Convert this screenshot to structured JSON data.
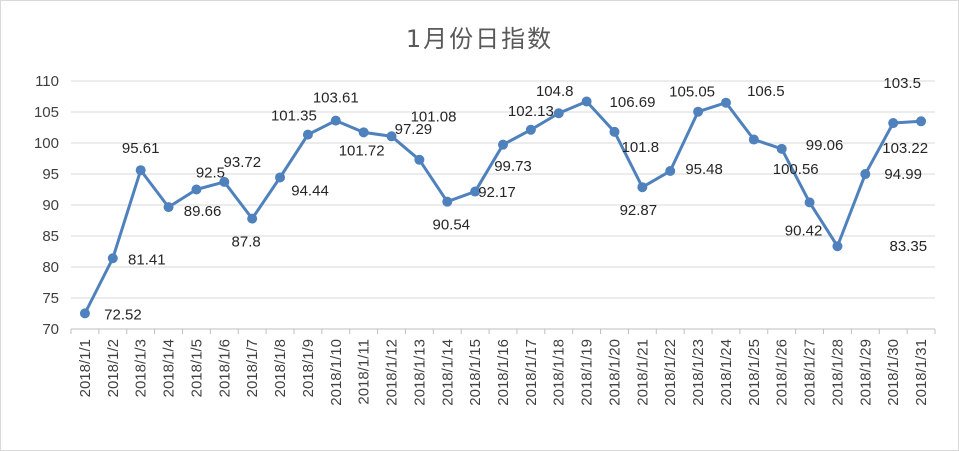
{
  "chart_data": {
    "type": "line",
    "title": "1月份日指数",
    "xlabel": "",
    "ylabel": "",
    "ylim": [
      70,
      110
    ],
    "yticks": [
      70,
      75,
      80,
      85,
      90,
      95,
      100,
      105,
      110
    ],
    "grid": true,
    "legend": "none",
    "categories": [
      "2018/1/1",
      "2018/1/2",
      "2018/1/3",
      "2018/1/4",
      "2018/1/5",
      "2018/1/6",
      "2018/1/7",
      "2018/1/8",
      "2018/1/9",
      "2018/1/10",
      "2018/1/11",
      "2018/1/12",
      "2018/1/13",
      "2018/1/14",
      "2018/1/15",
      "2018/1/16",
      "2018/1/17",
      "2018/1/18",
      "2018/1/19",
      "2018/1/20",
      "2018/1/21",
      "2018/1/22",
      "2018/1/23",
      "2018/1/24",
      "2018/1/25",
      "2018/1/26",
      "2018/1/27",
      "2018/1/28",
      "2018/1/29",
      "2018/1/30",
      "2018/1/31"
    ],
    "series": [
      {
        "values": [
          72.52,
          81.41,
          95.61,
          89.66,
          92.5,
          93.72,
          87.8,
          94.44,
          101.35,
          103.61,
          101.72,
          101.08,
          97.29,
          90.54,
          92.17,
          99.73,
          102.13,
          104.8,
          106.69,
          101.8,
          92.87,
          95.48,
          105.05,
          106.5,
          100.56,
          99.06,
          90.42,
          83.35,
          94.99,
          103.22,
          103.5
        ],
        "color": "#4f81bd"
      }
    ]
  }
}
